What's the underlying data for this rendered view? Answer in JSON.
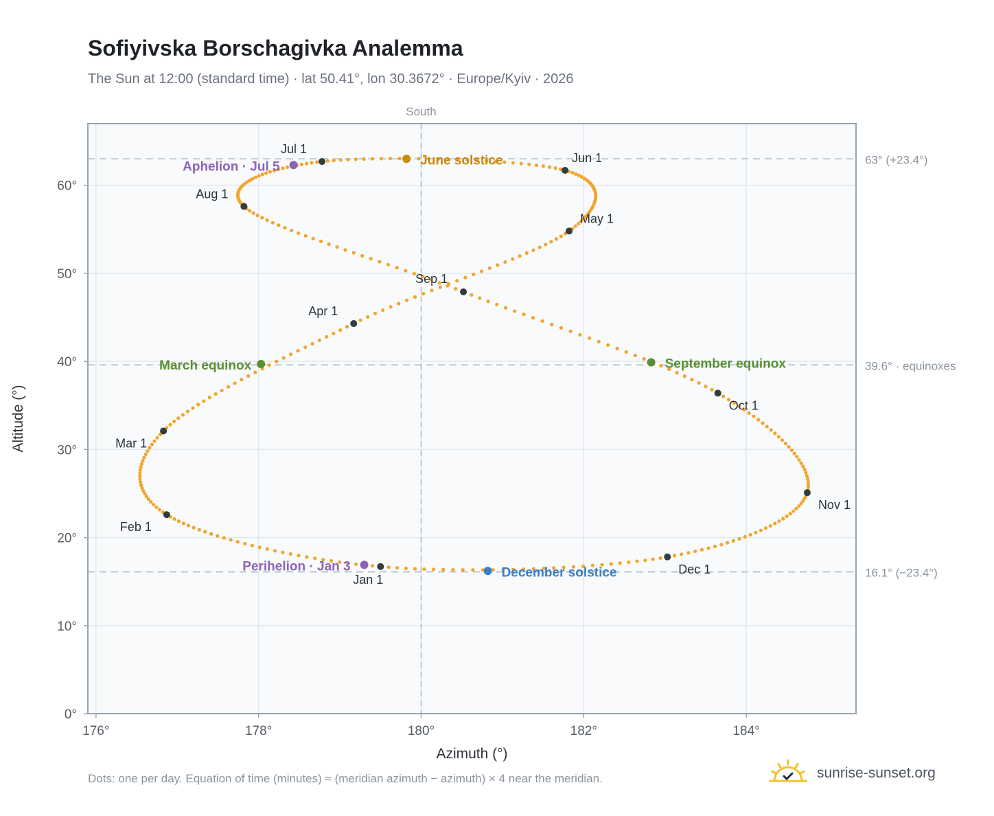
{
  "header": {
    "title": "Sofiyivska Borschagivka Analemma",
    "subtitle": "The Sun at 12:00 (standard time) · lat 50.41°, lon 30.3672° · Europe/Kyiv · 2026"
  },
  "footer": {
    "note": "Dots: one per day. Equation of time (minutes) ≈ (meridian azimuth − azimuth) × 4 near the meridian.",
    "brand": "sunrise-sunset.org"
  },
  "colors": {
    "path": "#f2a52c",
    "month_marker": "#333a40",
    "equinox": "#5b8f32",
    "june_solstice": "#c98a0c",
    "december_solstice": "#3b7ec6",
    "apsis": "#8e63b5",
    "grid": "#e3e8ee",
    "plot_bg": "#f8fafc",
    "frame": "#98a3af",
    "ref_line": "#a9b6c4"
  },
  "chart_data": {
    "type": "scatter",
    "xlabel": "Azimuth (°)",
    "ylabel": "Altitude (°)",
    "xlim": [
      175.9,
      185.35
    ],
    "ylim": [
      0,
      67
    ],
    "x_ticks": [
      176,
      178,
      180,
      182,
      184
    ],
    "x_tick_labels": [
      "176°",
      "178°",
      "180°",
      "182°",
      "184°"
    ],
    "y_ticks": [
      0,
      10,
      20,
      30,
      40,
      50,
      60
    ],
    "y_tick_labels": [
      "0°",
      "10°",
      "20°",
      "30°",
      "40°",
      "50°",
      "60°"
    ],
    "grid": true,
    "meridian": {
      "azimuth": 180,
      "label": "South"
    },
    "reference_lines": [
      {
        "altitude": 63.0,
        "label": "63° (+23.4°)"
      },
      {
        "altitude": 39.6,
        "label": "39.6° · equinoxes"
      },
      {
        "altitude": 16.1,
        "label": "16.1° (−23.4°)"
      }
    ],
    "month_markers": [
      {
        "label": "Jan 1",
        "az": 179.5,
        "alt": 16.7
      },
      {
        "label": "Feb 1",
        "az": 176.87,
        "alt": 22.6
      },
      {
        "label": "Mar 1",
        "az": 176.83,
        "alt": 32.1
      },
      {
        "label": "Apr 1",
        "az": 179.17,
        "alt": 44.3
      },
      {
        "label": "May 1",
        "az": 181.82,
        "alt": 54.8
      },
      {
        "label": "Jun 1",
        "az": 181.77,
        "alt": 61.7
      },
      {
        "label": "Jul 1",
        "az": 178.78,
        "alt": 62.7
      },
      {
        "label": "Aug 1",
        "az": 177.82,
        "alt": 57.6
      },
      {
        "label": "Sep 1",
        "az": 180.52,
        "alt": 47.9
      },
      {
        "label": "Oct 1",
        "az": 183.65,
        "alt": 36.4
      },
      {
        "label": "Nov 1",
        "az": 184.75,
        "alt": 25.1
      },
      {
        "label": "Dec 1",
        "az": 183.03,
        "alt": 17.8
      }
    ],
    "events": [
      {
        "label": "March equinox",
        "az": 178.03,
        "alt": 39.7,
        "kind": "equinox"
      },
      {
        "label": "June solstice",
        "az": 179.82,
        "alt": 63.0,
        "kind": "june_solstice"
      },
      {
        "label": "September equinox",
        "az": 182.83,
        "alt": 39.9,
        "kind": "equinox"
      },
      {
        "label": "December solstice",
        "az": 180.82,
        "alt": 16.2,
        "kind": "december_solstice"
      },
      {
        "label": "Perihelion · Jan 3",
        "az": 179.3,
        "alt": 16.9,
        "kind": "apsis"
      },
      {
        "label": "Aphelion · Jul 5",
        "az": 178.43,
        "alt": 62.3,
        "kind": "apsis"
      }
    ],
    "path_nodes": [
      {
        "day": 1,
        "az": 179.5,
        "alt": 16.7
      },
      {
        "day": 32,
        "az": 176.87,
        "alt": 22.6
      },
      {
        "day": 60,
        "az": 176.83,
        "alt": 32.1
      },
      {
        "day": 91,
        "az": 179.17,
        "alt": 44.3
      },
      {
        "day": 121,
        "az": 181.82,
        "alt": 54.8
      },
      {
        "day": 152,
        "az": 181.77,
        "alt": 61.7
      },
      {
        "day": 182,
        "az": 178.78,
        "alt": 62.7
      },
      {
        "day": 213,
        "az": 177.82,
        "alt": 57.6
      },
      {
        "day": 244,
        "az": 180.52,
        "alt": 47.9
      },
      {
        "day": 274,
        "az": 183.65,
        "alt": 36.4
      },
      {
        "day": 305,
        "az": 184.75,
        "alt": 25.1
      },
      {
        "day": 335,
        "az": 183.03,
        "alt": 17.8
      },
      {
        "day": 366,
        "az": 179.5,
        "alt": 16.7
      }
    ]
  }
}
